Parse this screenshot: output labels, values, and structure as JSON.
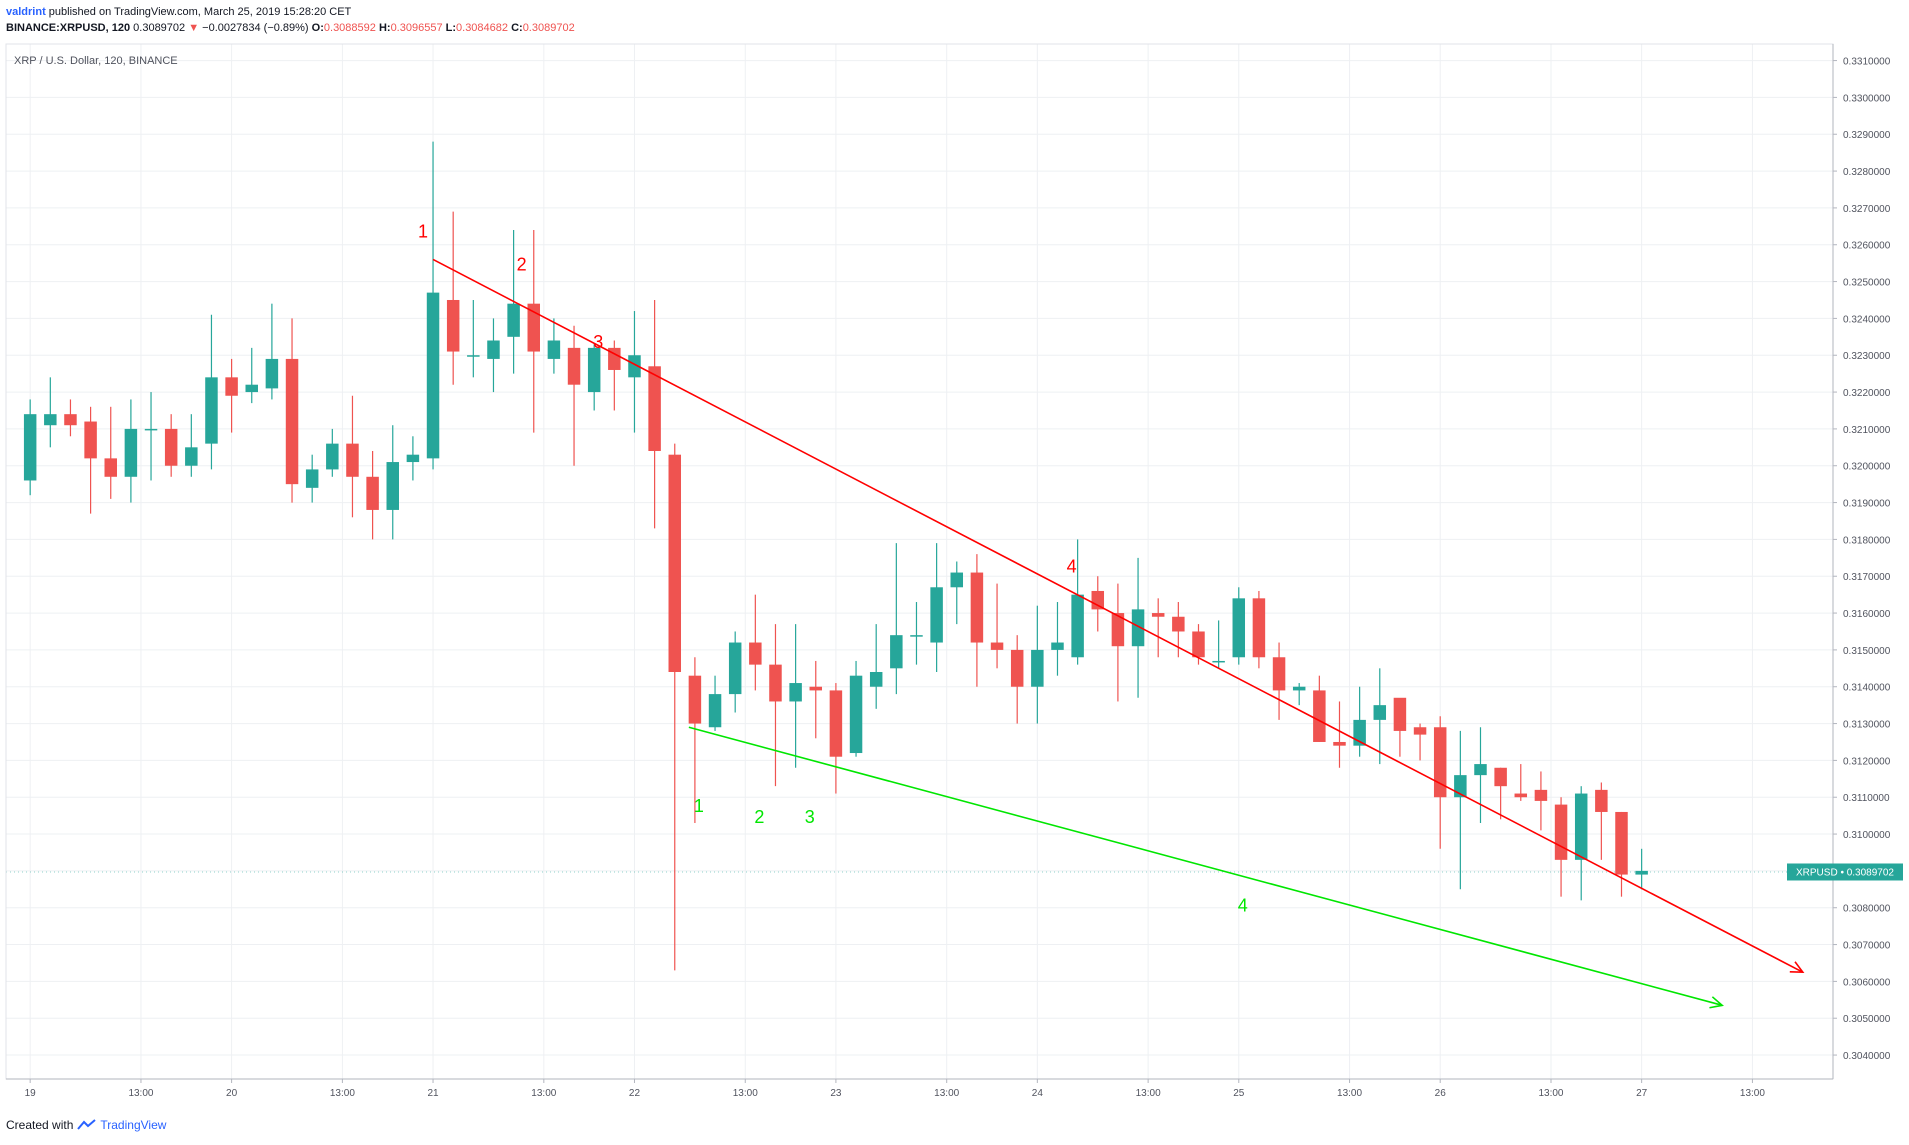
{
  "header": {
    "author": "valdrint",
    "published_text": "published on TradingView.com, March 25, 2019 15:28:20 CET",
    "symbol": "BINANCE:XRPUSD, 120",
    "last": "0.3089702",
    "change_arrow": "▼",
    "change": "−0.0027834 (−0.89%)",
    "o_label": "O:",
    "o_value": "0.3088592",
    "h_label": "H:",
    "h_value": "0.3096557",
    "l_label": "L:",
    "l_value": "0.3084682",
    "c_label": "C:",
    "c_value": "0.3089702"
  },
  "pane_title": "XRP / U.S. Dollar, 120, BINANCE",
  "price_tag": "XRPUSD • 0.3089702",
  "footer": {
    "created": "Created with",
    "brand": "TradingView"
  },
  "colors": {
    "up": "#26a69a",
    "down": "#ef5350",
    "resistance": "#ff0000",
    "support": "#00e600",
    "grid": "#eef0f3",
    "tag": "#26a69a"
  },
  "chart_data": {
    "type": "candlestick",
    "title": "XRP / U.S. Dollar, 120, BINANCE",
    "x_unit": "2-hour bars, March 2019",
    "y_ticks": [
      "0.3040000",
      "0.3050000",
      "0.3060000",
      "0.3070000",
      "0.3080000",
      "0.3090000",
      "0.3100000",
      "0.3110000",
      "0.3120000",
      "0.3130000",
      "0.3140000",
      "0.3150000",
      "0.3160000",
      "0.3170000",
      "0.3180000",
      "0.3190000",
      "0.3200000",
      "0.3210000",
      "0.3220000",
      "0.3230000",
      "0.3240000",
      "0.3250000",
      "0.3260000",
      "0.3270000",
      "0.3280000",
      "0.3290000",
      "0.3300000",
      "0.3310000"
    ],
    "y_range": [
      0.30335,
      0.33145
    ],
    "x_range": [
      -1.2,
      89.5
    ],
    "x_ticks": [
      {
        "label": "19",
        "x": 0
      },
      {
        "label": "13:00",
        "x": 5.5
      },
      {
        "label": "20",
        "x": 10
      },
      {
        "label": "13:00",
        "x": 15.5
      },
      {
        "label": "21",
        "x": 20
      },
      {
        "label": "13:00",
        "x": 25.5
      },
      {
        "label": "22",
        "x": 30
      },
      {
        "label": "13:00",
        "x": 35.5
      },
      {
        "label": "23",
        "x": 40
      },
      {
        "label": "13:00",
        "x": 45.5
      },
      {
        "label": "24",
        "x": 50
      },
      {
        "label": "13:00",
        "x": 55.5
      },
      {
        "label": "25",
        "x": 60
      },
      {
        "label": "13:00",
        "x": 65.5
      },
      {
        "label": "26",
        "x": 70
      },
      {
        "label": "13:00",
        "x": 75.5
      },
      {
        "label": "27",
        "x": 80
      },
      {
        "label": "13:00",
        "x": 85.5
      }
    ],
    "candles": [
      [
        0.3196,
        0.3218,
        0.3192,
        0.3214
      ],
      [
        0.3211,
        0.3224,
        0.3205,
        0.3214
      ],
      [
        0.3214,
        0.3218,
        0.3208,
        0.3211
      ],
      [
        0.3212,
        0.3216,
        0.3187,
        0.3202
      ],
      [
        0.3202,
        0.3216,
        0.3191,
        0.3197
      ],
      [
        0.3197,
        0.3218,
        0.319,
        0.321
      ],
      [
        0.321,
        0.322,
        0.3196,
        0.321
      ],
      [
        0.321,
        0.3214,
        0.3197,
        0.32
      ],
      [
        0.32,
        0.3214,
        0.3197,
        0.3205
      ],
      [
        0.3206,
        0.3241,
        0.3199,
        0.3224
      ],
      [
        0.3224,
        0.3229,
        0.3209,
        0.3219
      ],
      [
        0.322,
        0.3232,
        0.3217,
        0.3222
      ],
      [
        0.3221,
        0.3244,
        0.3218,
        0.3229
      ],
      [
        0.3229,
        0.324,
        0.319,
        0.3195
      ],
      [
        0.3194,
        0.3203,
        0.319,
        0.3199
      ],
      [
        0.3199,
        0.321,
        0.3197,
        0.3206
      ],
      [
        0.3206,
        0.3219,
        0.3186,
        0.3197
      ],
      [
        0.3197,
        0.3204,
        0.318,
        0.3188
      ],
      [
        0.3188,
        0.3211,
        0.318,
        0.3201
      ],
      [
        0.3201,
        0.3208,
        0.3196,
        0.3203
      ],
      [
        0.3202,
        0.3288,
        0.3199,
        0.3247
      ],
      [
        0.3245,
        0.3269,
        0.3222,
        0.3231
      ],
      [
        0.323,
        0.3245,
        0.3224,
        0.323
      ],
      [
        0.3229,
        0.324,
        0.322,
        0.3234
      ],
      [
        0.3235,
        0.3264,
        0.3225,
        0.3244
      ],
      [
        0.3244,
        0.3264,
        0.3209,
        0.3231
      ],
      [
        0.3229,
        0.324,
        0.3225,
        0.3234
      ],
      [
        0.3232,
        0.3238,
        0.32,
        0.3222
      ],
      [
        0.322,
        0.3233,
        0.3215,
        0.3232
      ],
      [
        0.3232,
        0.3234,
        0.3215,
        0.3226
      ],
      [
        0.3224,
        0.3242,
        0.3209,
        0.323
      ],
      [
        0.3227,
        0.3245,
        0.3183,
        0.3204
      ],
      [
        0.3203,
        0.3206,
        0.3063,
        0.3144
      ],
      [
        0.3143,
        0.3148,
        0.3103,
        0.313
      ],
      [
        0.3129,
        0.3143,
        0.3128,
        0.3138
      ],
      [
        0.3138,
        0.3155,
        0.3133,
        0.3152
      ],
      [
        0.3152,
        0.3165,
        0.3139,
        0.3146
      ],
      [
        0.3146,
        0.3157,
        0.3113,
        0.3136
      ],
      [
        0.3136,
        0.3157,
        0.3118,
        0.3141
      ],
      [
        0.314,
        0.3147,
        0.3126,
        0.3139
      ],
      [
        0.3139,
        0.3141,
        0.3111,
        0.3121
      ],
      [
        0.3122,
        0.3147,
        0.3121,
        0.3143
      ],
      [
        0.314,
        0.3157,
        0.3134,
        0.3144
      ],
      [
        0.3145,
        0.3179,
        0.3138,
        0.3154
      ],
      [
        0.3154,
        0.3163,
        0.3146,
        0.3154
      ],
      [
        0.3152,
        0.3179,
        0.3144,
        0.3167
      ],
      [
        0.3167,
        0.3174,
        0.3157,
        0.3171
      ],
      [
        0.3171,
        0.3176,
        0.314,
        0.3152
      ],
      [
        0.3152,
        0.3168,
        0.3145,
        0.315
      ],
      [
        0.315,
        0.3154,
        0.313,
        0.314
      ],
      [
        0.314,
        0.3162,
        0.313,
        0.315
      ],
      [
        0.315,
        0.3163,
        0.3143,
        0.3152
      ],
      [
        0.3148,
        0.318,
        0.3146,
        0.3165
      ],
      [
        0.3166,
        0.317,
        0.3155,
        0.3161
      ],
      [
        0.316,
        0.3168,
        0.3136,
        0.3151
      ],
      [
        0.3151,
        0.3175,
        0.3137,
        0.3161
      ],
      [
        0.316,
        0.3164,
        0.3148,
        0.3159
      ],
      [
        0.3159,
        0.3163,
        0.3148,
        0.3155
      ],
      [
        0.3155,
        0.3157,
        0.3146,
        0.3148
      ],
      [
        0.3147,
        0.3158,
        0.3145,
        0.3147
      ],
      [
        0.3148,
        0.3167,
        0.3146,
        0.3164
      ],
      [
        0.3164,
        0.3166,
        0.3145,
        0.3148
      ],
      [
        0.3148,
        0.3152,
        0.3131,
        0.3139
      ],
      [
        0.3139,
        0.3141,
        0.3135,
        0.314
      ],
      [
        0.3139,
        0.3143,
        0.3125,
        0.3125
      ],
      [
        0.3125,
        0.3136,
        0.3118,
        0.3124
      ],
      [
        0.3124,
        0.314,
        0.3121,
        0.3131
      ],
      [
        0.3131,
        0.3145,
        0.3119,
        0.3135
      ],
      [
        0.3137,
        0.3136,
        0.3121,
        0.3128
      ],
      [
        0.3129,
        0.313,
        0.312,
        0.3127
      ],
      [
        0.3129,
        0.3132,
        0.3096,
        0.311
      ],
      [
        0.311,
        0.3128,
        0.3085,
        0.3116
      ],
      [
        0.3116,
        0.3129,
        0.3103,
        0.3119
      ],
      [
        0.3118,
        0.3118,
        0.3104,
        0.3113
      ],
      [
        0.3111,
        0.3119,
        0.3109,
        0.311
      ],
      [
        0.3112,
        0.3117,
        0.3101,
        0.3109
      ],
      [
        0.3108,
        0.311,
        0.3083,
        0.3093
      ],
      [
        0.3093,
        0.3113,
        0.3082,
        0.3111
      ],
      [
        0.3112,
        0.3114,
        0.3093,
        0.3106
      ],
      [
        0.3106,
        0.3106,
        0.3083,
        0.3089
      ],
      [
        0.3089,
        0.3096,
        0.3085,
        0.309
      ]
    ],
    "candle_x_start": 0,
    "lines": [
      {
        "name": "resistance",
        "color": "#ff0000",
        "x1": 20.0,
        "y1": 0.3256,
        "x2": 88.0,
        "y2": 0.30625,
        "arrow": true
      },
      {
        "name": "support",
        "color": "#00e600",
        "x1": 32.7,
        "y1": 0.3129,
        "x2": 84.0,
        "y2": 0.30535,
        "arrow": true
      }
    ],
    "annotations": [
      {
        "text": "1",
        "color": "#ff0000",
        "x": 19.5,
        "y": 0.3262
      },
      {
        "text": "2",
        "color": "#ff0000",
        "x": 24.4,
        "y": 0.3253
      },
      {
        "text": "3",
        "color": "#ff0000",
        "x": 28.2,
        "y": 0.3232
      },
      {
        "text": "4",
        "color": "#ff0000",
        "x": 51.7,
        "y": 0.3171
      },
      {
        "text": "1",
        "color": "#00e600",
        "x": 33.2,
        "y": 0.3106
      },
      {
        "text": "2",
        "color": "#00e600",
        "x": 36.2,
        "y": 0.3103
      },
      {
        "text": "3",
        "color": "#00e600",
        "x": 38.7,
        "y": 0.3103
      },
      {
        "text": "4",
        "color": "#00e600",
        "x": 60.2,
        "y": 0.3079
      }
    ],
    "last_price": 0.3089702
  }
}
